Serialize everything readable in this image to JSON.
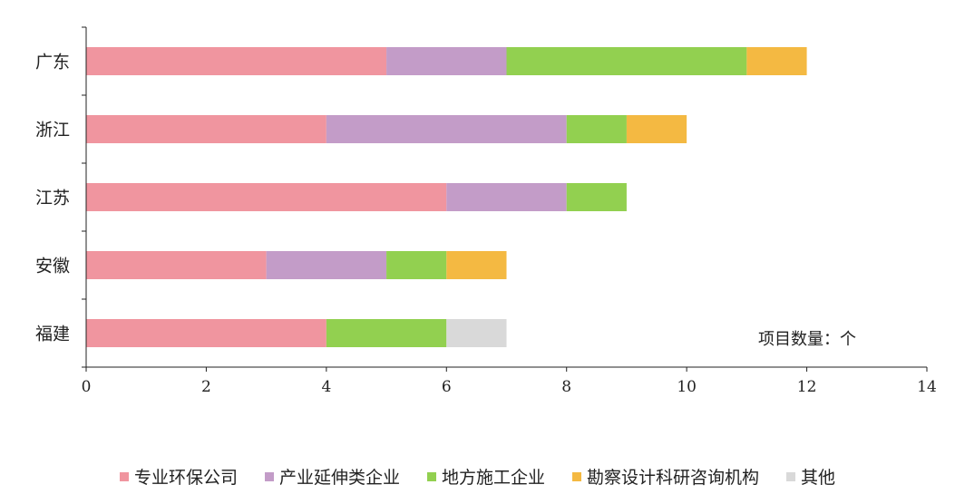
{
  "chart_data": {
    "type": "bar",
    "orientation": "horizontal",
    "stacked": true,
    "categories": [
      "广东",
      "浙江",
      "江苏",
      "安徽",
      "福建"
    ],
    "series": [
      {
        "name": "专业环保公司",
        "color": "#f0959f",
        "values": [
          5,
          4,
          6,
          3,
          4
        ]
      },
      {
        "name": "产业延伸类企业",
        "color": "#c39cc8",
        "values": [
          2,
          4,
          2,
          2,
          0
        ]
      },
      {
        "name": "地方施工企业",
        "color": "#92d050",
        "values": [
          4,
          1,
          1,
          1,
          2
        ]
      },
      {
        "name": "勘察设计科研咨询机构",
        "color": "#f4b942",
        "values": [
          1,
          1,
          0,
          1,
          0
        ]
      },
      {
        "name": "其他",
        "color": "#d9d9d9",
        "values": [
          0,
          0,
          0,
          0,
          1
        ]
      }
    ],
    "xlim": [
      0,
      14
    ],
    "xticks": [
      "0",
      "2",
      "4",
      "6",
      "8",
      "10",
      "12",
      "14"
    ],
    "unit_label": "项目数量：个",
    "grid": false,
    "legend_position": "bottom"
  }
}
